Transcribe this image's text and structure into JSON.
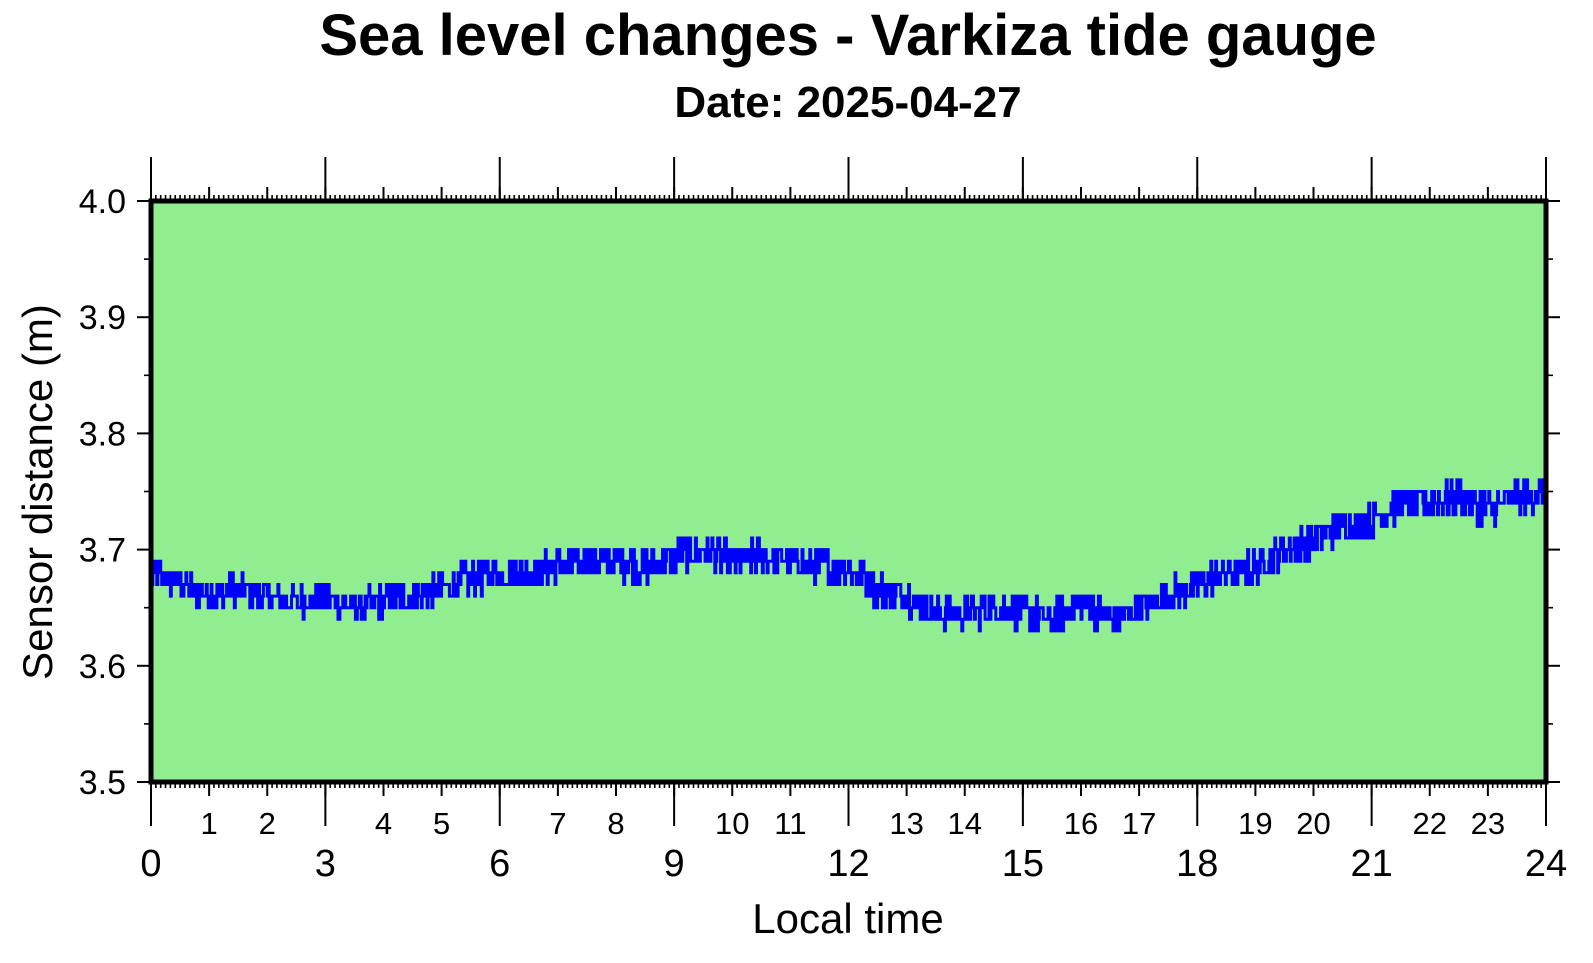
{
  "chart_data": {
    "type": "line",
    "title": "Sea level changes - Varkiza tide gauge",
    "subtitle": "Date: 2025-04-27",
    "xlabel": "Local time",
    "ylabel": "Sensor distance (m)",
    "xlim": [
      0,
      24
    ],
    "ylim": [
      3.5,
      4.0
    ],
    "plot_background": "#90ee90",
    "line_color": "#0000ff",
    "grid": false,
    "x_major_ticks": [
      "0",
      "3",
      "6",
      "9",
      "12",
      "15",
      "18",
      "21",
      "24"
    ],
    "x_minor_labels": [
      {
        "x": 1,
        "label": "1"
      },
      {
        "x": 2,
        "label": "2"
      },
      {
        "x": 4,
        "label": "4"
      },
      {
        "x": 5,
        "label": "5"
      },
      {
        "x": 7,
        "label": "7"
      },
      {
        "x": 8,
        "label": "8"
      },
      {
        "x": 10,
        "label": "10"
      },
      {
        "x": 11,
        "label": "11"
      },
      {
        "x": 13,
        "label": "13"
      },
      {
        "x": 14,
        "label": "14"
      },
      {
        "x": 16,
        "label": "16"
      },
      {
        "x": 17,
        "label": "17"
      },
      {
        "x": 19,
        "label": "19"
      },
      {
        "x": 20,
        "label": "20"
      },
      {
        "x": 22,
        "label": "22"
      },
      {
        "x": 23,
        "label": "23"
      }
    ],
    "y_ticks": [
      {
        "y": 3.5,
        "label": "3.5"
      },
      {
        "y": 3.6,
        "label": "3.6"
      },
      {
        "y": 3.7,
        "label": "3.7"
      },
      {
        "y": 3.8,
        "label": "3.8"
      },
      {
        "y": 3.9,
        "label": "3.9"
      },
      {
        "y": 4.0,
        "label": "4.0"
      }
    ],
    "series": [
      {
        "x": [
          0,
          0.5,
          1,
          1.5,
          2,
          2.5,
          3,
          3.5,
          4,
          4.5,
          5,
          5.5,
          6,
          6.5,
          7,
          7.5,
          8,
          8.5,
          9,
          9.5,
          10,
          10.5,
          11,
          11.5,
          12,
          12.5,
          13,
          13.5,
          14,
          14.5,
          15,
          15.5,
          16,
          16.5,
          17,
          17.5,
          18,
          18.5,
          19,
          19.5,
          20,
          20.5,
          21,
          21.5,
          22,
          22.5,
          23,
          23.5,
          24
        ],
        "y": [
          3.68,
          3.67,
          3.66,
          3.665,
          3.66,
          3.655,
          3.66,
          3.65,
          3.655,
          3.66,
          3.665,
          3.675,
          3.68,
          3.68,
          3.685,
          3.69,
          3.69,
          3.685,
          3.695,
          3.7,
          3.69,
          3.695,
          3.69,
          3.685,
          3.685,
          3.665,
          3.66,
          3.645,
          3.645,
          3.65,
          3.645,
          3.64,
          3.655,
          3.64,
          3.65,
          3.66,
          3.67,
          3.68,
          3.685,
          3.7,
          3.71,
          3.72,
          3.725,
          3.74,
          3.74,
          3.745,
          3.735,
          3.745,
          3.75
        ]
      }
    ]
  }
}
